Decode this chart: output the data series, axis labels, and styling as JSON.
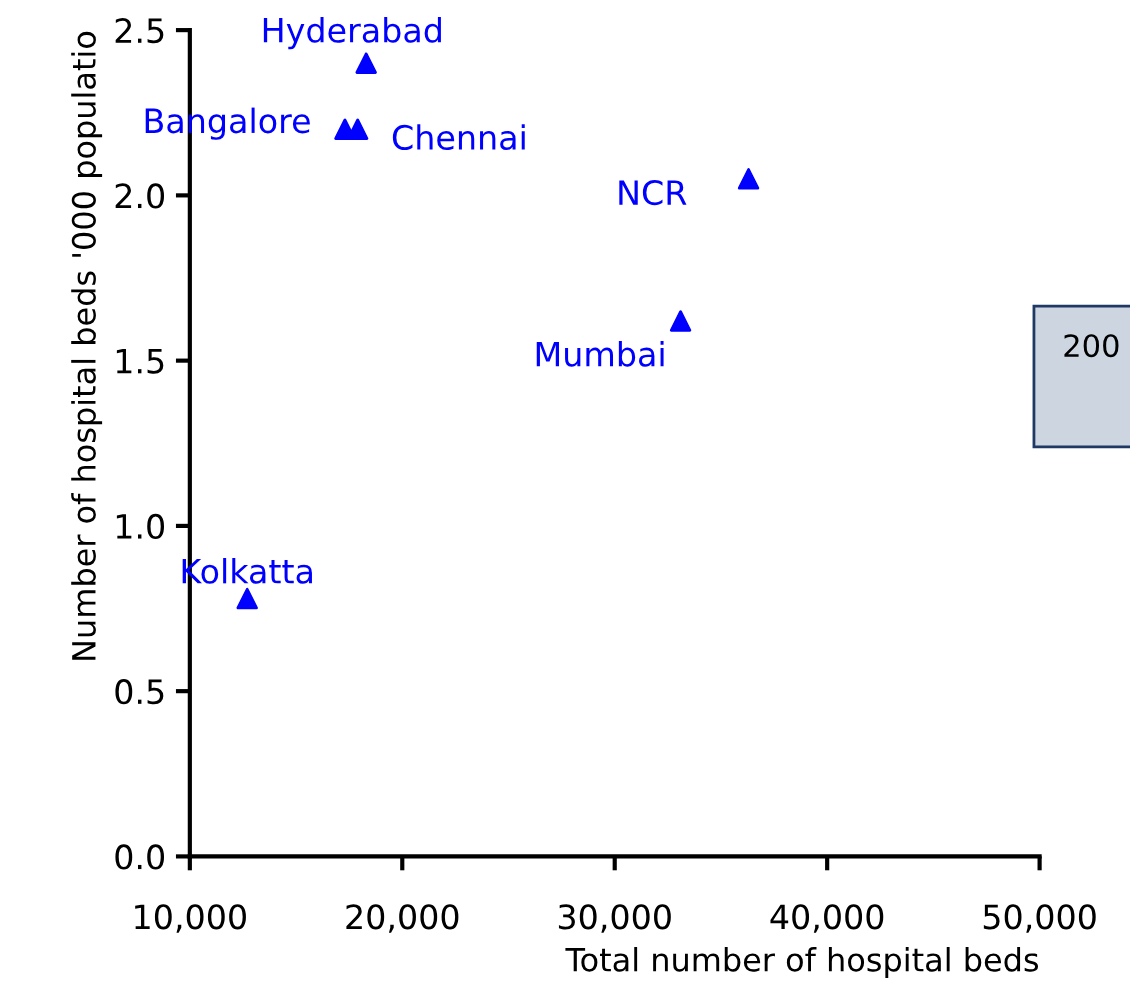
{
  "chart_data": {
    "type": "scatter",
    "xlabel": "Total number of hospital beds",
    "ylabel": "Number of hospital beds '000 populatio",
    "x": [
      18300,
      17300,
      17900,
      36300,
      33100,
      12700
    ],
    "series": [
      {
        "color": "#0000ff",
        "values": [
          2.4,
          2.2,
          2.2,
          2.05,
          1.62,
          0.78
        ]
      }
    ],
    "marker": "triangle",
    "xlim": [
      10000,
      50000
    ],
    "xticks": [
      {
        "value": 10000,
        "label": "10,000"
      },
      {
        "value": 20000,
        "label": "20,000"
      },
      {
        "value": 30000,
        "label": "30,000"
      },
      {
        "value": 40000,
        "label": "40,000"
      },
      {
        "value": 50000,
        "label": "50,000"
      }
    ],
    "ylim": [
      0,
      2.5
    ],
    "yticks": [
      {
        "value": 0,
        "label": "0.0"
      },
      {
        "value": 0.5,
        "label": "0.5"
      },
      {
        "value": 1,
        "label": "1.0"
      },
      {
        "value": 1.5,
        "label": "1.5"
      },
      {
        "value": 2,
        "label": "2.0"
      },
      {
        "value": 2.5,
        "label": "2.5"
      }
    ],
    "grid": false,
    "annotations": [
      {
        "text": "Hyderabad",
        "x": 18300,
        "y": 2.4
      },
      {
        "text": "Bangalore",
        "x": 17300,
        "y": 2.2
      },
      {
        "text": "Chennai",
        "x": 17900,
        "y": 2.2
      },
      {
        "text": "NCR",
        "x": 36300,
        "y": 2.05
      },
      {
        "text": "Mumbai",
        "x": 33100,
        "y": 1.62
      },
      {
        "text": "Kolkatta",
        "x": 12700,
        "y": 0.78
      },
      "200"
    ]
  }
}
